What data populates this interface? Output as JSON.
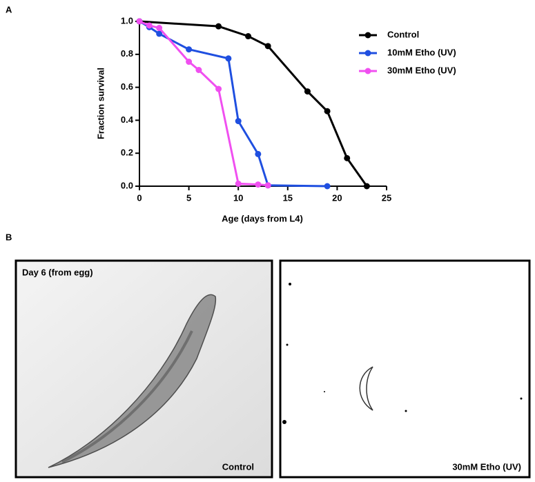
{
  "panel_labels": [
    "A",
    "B"
  ],
  "chart_data": {
    "type": "line",
    "x_label": "Age (days from L4)",
    "y_label": "Fraction survival",
    "xlim": [
      0,
      25
    ],
    "xticks": [
      0,
      5,
      10,
      15,
      20,
      25
    ],
    "ylim": [
      0,
      1
    ],
    "yticks": [
      {
        "value": 0,
        "label": "0.0"
      },
      0.2,
      0.4,
      0.6,
      0.8,
      {
        "value": 1,
        "label": "1.0"
      }
    ],
    "legend": "upper right",
    "series": [
      {
        "name": "Control",
        "color": "#000000",
        "x": [
          0,
          8,
          11,
          13,
          17,
          19,
          21,
          23
        ],
        "values": [
          1.0,
          0.97,
          0.91,
          0.85,
          0.575,
          0.455,
          0.17,
          0.0
        ]
      },
      {
        "name": "10mM Etho (UV)",
        "color": "#1f4fe0",
        "x": [
          0,
          1,
          2,
          5,
          9,
          10,
          12,
          13,
          19
        ],
        "values": [
          1.0,
          0.965,
          0.925,
          0.83,
          0.775,
          0.395,
          0.195,
          0.005,
          0.0
        ]
      },
      {
        "name": "30mM Etho (UV)",
        "color": "#f04ff0",
        "x": [
          0,
          1,
          2,
          5,
          6,
          8,
          10,
          12,
          13
        ],
        "values": [
          1.0,
          0.975,
          0.96,
          0.755,
          0.705,
          0.59,
          0.015,
          0.01,
          0.005
        ]
      }
    ]
  },
  "images": [
    {
      "top_label": "Day 6 (from egg)",
      "caption": "Control"
    },
    {
      "caption": "30mM Etho (UV)"
    }
  ]
}
